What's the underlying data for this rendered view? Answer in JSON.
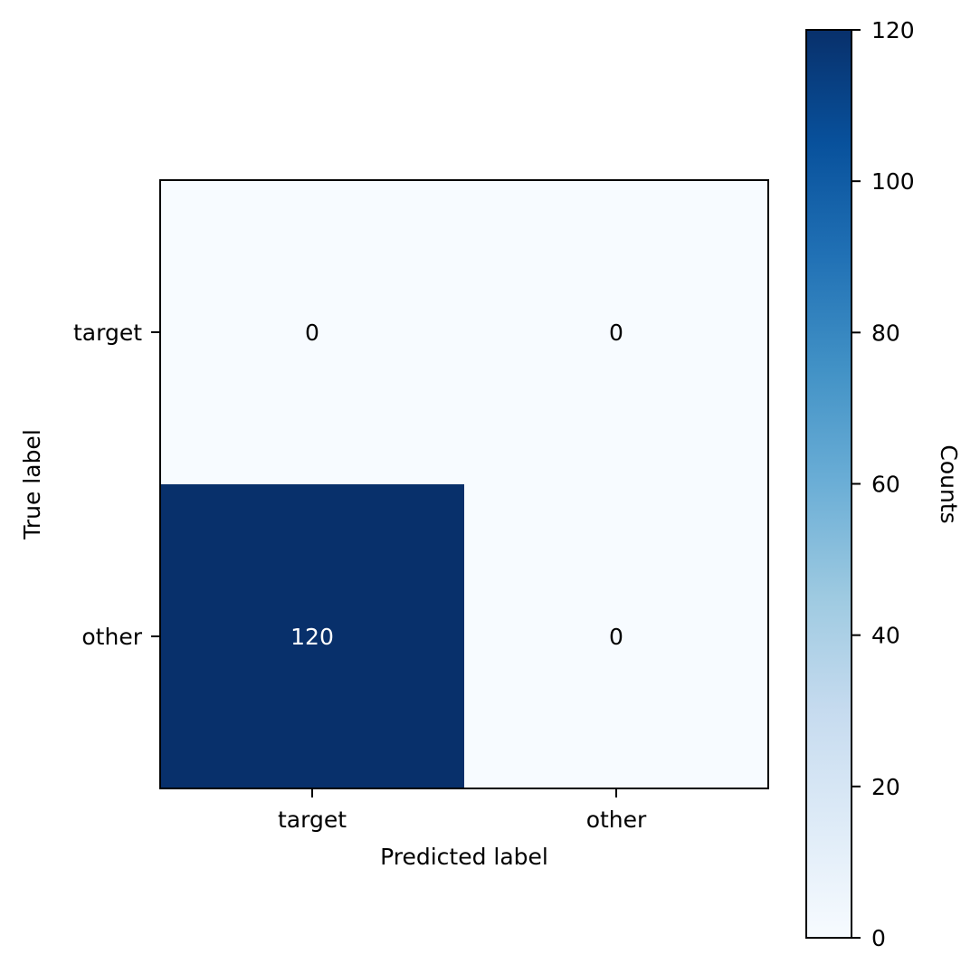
{
  "chart_data": {
    "type": "heatmap",
    "xlabel": "Predicted label",
    "ylabel": "True label",
    "x_categories": [
      "target",
      "other"
    ],
    "y_categories": [
      "target",
      "other"
    ],
    "values": [
      [
        0,
        0
      ],
      [
        120,
        0
      ]
    ],
    "colorbar": {
      "label": "Counts",
      "min": 0,
      "max": 120,
      "ticks": [
        0,
        20,
        40,
        60,
        80,
        100,
        120
      ],
      "colormap": "Blues",
      "low_color": "#f7fbff",
      "high_color": "#08306b"
    },
    "grid": false
  }
}
